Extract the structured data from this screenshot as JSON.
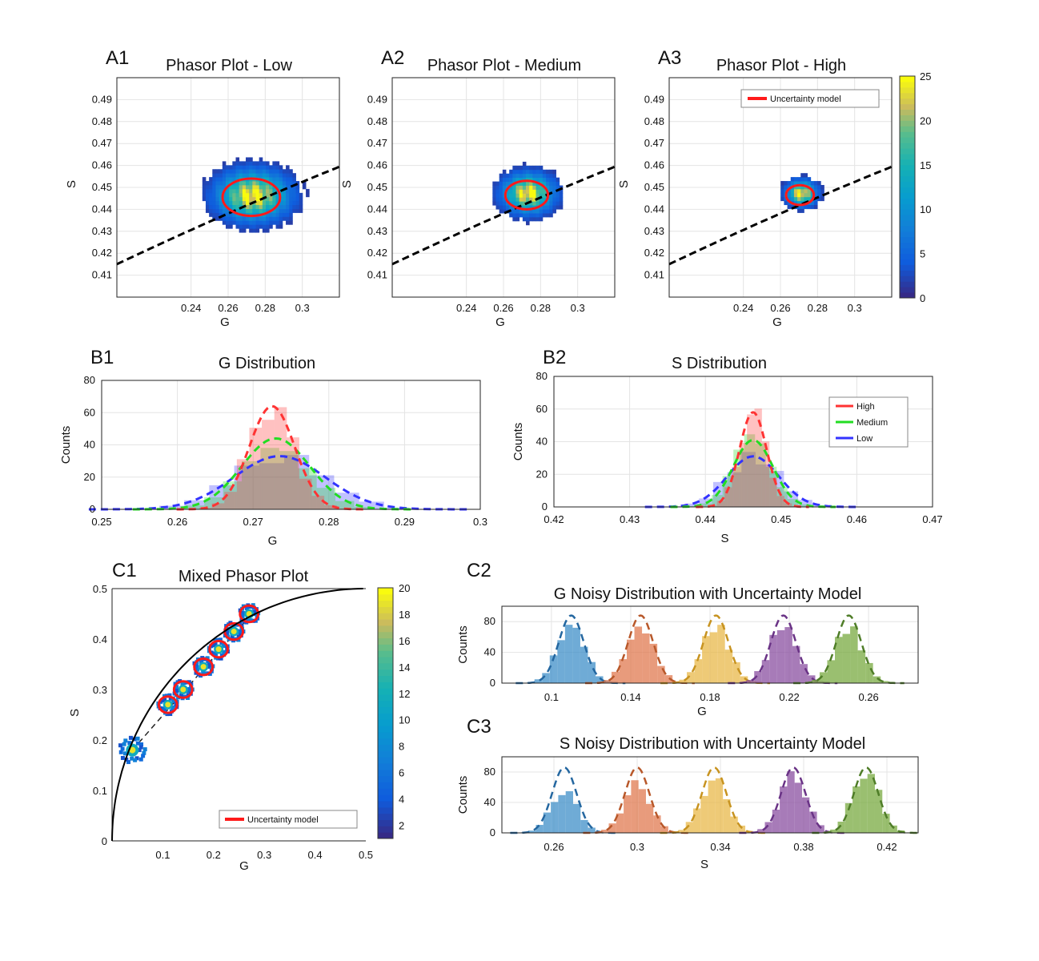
{
  "colors": {
    "ellipse": "#ff1a1a",
    "curve": "#000000",
    "high": "#ff3333",
    "medium": "#22dd22",
    "low": "#3333ff",
    "c_series": [
      "#3f8fc8",
      "#e07a50",
      "#e8b84a",
      "#8a4fa0",
      "#78aa40"
    ],
    "c_dash": [
      "#2467a0",
      "#b8582a",
      "#c79320",
      "#6a3386",
      "#4f7d28"
    ]
  },
  "chart_data": [
    {
      "id": "A1",
      "label": "A1",
      "type": "heatmap",
      "title": "Phasor Plot - Low",
      "xlabel": "G",
      "ylabel": "S",
      "xlim": [
        0.2,
        0.32
      ],
      "ylim": [
        0.4,
        0.5
      ],
      "xticks": [
        "0.24",
        "0.26",
        "0.28",
        "0.3"
      ],
      "yticks": [
        "0.41",
        "0.42",
        "0.43",
        "0.44",
        "0.45",
        "0.46",
        "0.47",
        "0.48",
        "0.49"
      ],
      "center": [
        0.2725,
        0.4455
      ],
      "ellipse_radius": [
        0.0155,
        0.0085
      ],
      "spread": [
        0.012,
        0.007
      ]
    },
    {
      "id": "A2",
      "label": "A2",
      "type": "heatmap",
      "title": "Phasor Plot - Medium",
      "xlabel": "G",
      "ylabel": "S",
      "xlim": [
        0.2,
        0.32
      ],
      "ylim": [
        0.4,
        0.5
      ],
      "xticks": [
        "0.24",
        "0.26",
        "0.28",
        "0.3"
      ],
      "yticks": [
        "0.41",
        "0.42",
        "0.43",
        "0.44",
        "0.45",
        "0.46",
        "0.47",
        "0.48",
        "0.49"
      ],
      "center": [
        0.2725,
        0.4465
      ],
      "ellipse_radius": [
        0.0115,
        0.0065
      ],
      "spread": [
        0.0085,
        0.0055
      ]
    },
    {
      "id": "A3",
      "label": "A3",
      "type": "heatmap",
      "title": "Phasor Plot - High",
      "xlabel": "G",
      "ylabel": "S",
      "xlim": [
        0.2,
        0.32
      ],
      "ylim": [
        0.4,
        0.5
      ],
      "xticks": [
        "0.24",
        "0.26",
        "0.28",
        "0.3"
      ],
      "yticks": [
        "0.41",
        "0.42",
        "0.43",
        "0.44",
        "0.45",
        "0.46",
        "0.47",
        "0.48",
        "0.49"
      ],
      "center": [
        0.2705,
        0.4465
      ],
      "ellipse_radius": [
        0.0075,
        0.0045
      ],
      "spread": [
        0.005,
        0.0035
      ],
      "legend": "Uncertainty model",
      "colorbar": {
        "min": 0,
        "max": 25,
        "ticks": [
          "0",
          "5",
          "10",
          "15",
          "20",
          "25"
        ]
      }
    },
    {
      "id": "B1",
      "label": "B1",
      "type": "histogram",
      "title": "G Distribution",
      "xlabel": "G",
      "ylabel": "Counts",
      "xlim": [
        0.25,
        0.3
      ],
      "ylim": [
        0,
        80
      ],
      "xticks": [
        "0.25",
        "0.26",
        "0.27",
        "0.28",
        "0.29",
        "0.3"
      ],
      "yticks": [
        "0",
        "20",
        "40",
        "60",
        "80"
      ],
      "series": [
        {
          "name": "High",
          "mean": 0.2725,
          "sd": 0.003,
          "peak": 64
        },
        {
          "name": "Medium",
          "mean": 0.273,
          "sd": 0.0045,
          "peak": 44
        },
        {
          "name": "Low",
          "mean": 0.2735,
          "sd": 0.006,
          "peak": 33
        }
      ]
    },
    {
      "id": "B2",
      "label": "B2",
      "type": "histogram",
      "title": "S Distribution",
      "xlabel": "S",
      "ylabel": "Counts",
      "xlim": [
        0.42,
        0.47
      ],
      "ylim": [
        0,
        80
      ],
      "xticks": [
        "0.42",
        "0.43",
        "0.44",
        "0.45",
        "0.46",
        "0.47"
      ],
      "yticks": [
        "0",
        "20",
        "40",
        "60",
        "80"
      ],
      "legend": [
        "High",
        "Medium",
        "Low"
      ],
      "series": [
        {
          "name": "High",
          "mean": 0.4463,
          "sd": 0.0018,
          "peak": 58
        },
        {
          "name": "Medium",
          "mean": 0.4463,
          "sd": 0.0026,
          "peak": 41
        },
        {
          "name": "Low",
          "mean": 0.4463,
          "sd": 0.0034,
          "peak": 31
        }
      ]
    },
    {
      "id": "C1",
      "label": "C1",
      "type": "scatter",
      "title": "Mixed Phasor Plot",
      "xlabel": "G",
      "ylabel": "S",
      "xlim": [
        0,
        0.5
      ],
      "ylim": [
        0,
        0.5
      ],
      "xticks": [
        "0.1",
        "0.2",
        "0.3",
        "0.4",
        "0.5"
      ],
      "yticks": [
        "0",
        "0.1",
        "0.2",
        "0.3",
        "0.4",
        "0.5"
      ],
      "clusters": [
        [
          0.04,
          0.18
        ],
        [
          0.11,
          0.27
        ],
        [
          0.14,
          0.3
        ],
        [
          0.18,
          0.345
        ],
        [
          0.21,
          0.38
        ],
        [
          0.24,
          0.415
        ],
        [
          0.27,
          0.45
        ]
      ],
      "legend": "Uncertainty model",
      "colorbar": {
        "min": 1,
        "max": 20,
        "ticks": [
          "2",
          "4",
          "6",
          "8",
          "10",
          "12",
          "14",
          "16",
          "18",
          "20"
        ]
      }
    },
    {
      "id": "C2",
      "label": "C2",
      "type": "histogram",
      "title": "G Noisy Distribution with Uncertainty Model",
      "xlabel": "G",
      "ylabel": "Counts",
      "xlim": [
        0.075,
        0.285
      ],
      "ylim": [
        0,
        100
      ],
      "xticks": [
        "0.1",
        "0.14",
        "0.18",
        "0.22",
        "0.26"
      ],
      "yticks": [
        "0",
        "40",
        "80"
      ],
      "means": [
        0.11,
        0.145,
        0.183,
        0.217,
        0.25
      ],
      "sd": 0.007,
      "bar_peak": [
        76,
        73,
        74,
        75,
        72
      ],
      "fit_peak": [
        88,
        88,
        88,
        88,
        88
      ]
    },
    {
      "id": "C3",
      "label": "C3",
      "type": "histogram",
      "title": "S Noisy Distribution with Uncertainty Model",
      "xlabel": "S",
      "ylabel": "Counts",
      "xlim": [
        0.235,
        0.435
      ],
      "ylim": [
        0,
        100
      ],
      "xticks": [
        "0.26",
        "0.3",
        "0.34",
        "0.38",
        "0.42"
      ],
      "yticks": [
        "0",
        "40",
        "80"
      ],
      "means": [
        0.265,
        0.3,
        0.337,
        0.375,
        0.41
      ],
      "sd": 0.0065,
      "bar_peak": [
        55,
        64,
        70,
        76,
        80
      ],
      "fit_peak": [
        86,
        86,
        86,
        86,
        86
      ]
    }
  ]
}
